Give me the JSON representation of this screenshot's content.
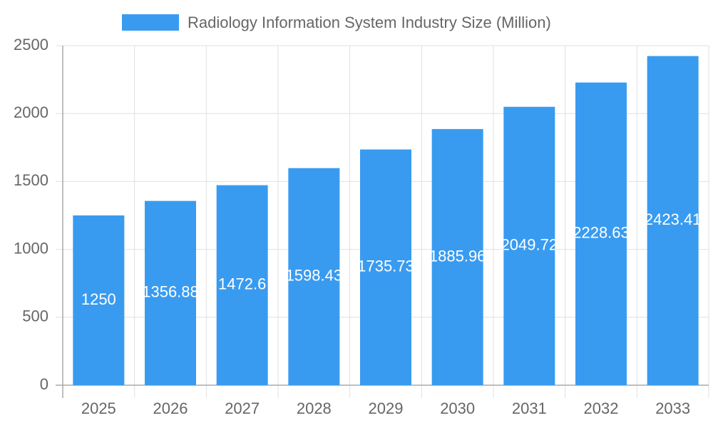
{
  "chart_data": {
    "type": "bar",
    "categories": [
      "2025",
      "2026",
      "2027",
      "2028",
      "2029",
      "2030",
      "2031",
      "2032",
      "2033"
    ],
    "series": [
      {
        "name": "Radiology Information System Industry Size (Million)",
        "color": "#399bf0",
        "values": [
          1250,
          1356.88,
          1472.6,
          1598.43,
          1735.73,
          1885.96,
          2049.72,
          2228.63,
          2423.41
        ]
      }
    ],
    "ylim": [
      0,
      2500
    ],
    "yticks": [
      0,
      500,
      1000,
      1500,
      2000,
      2500
    ],
    "grid": true,
    "legend": "top"
  }
}
